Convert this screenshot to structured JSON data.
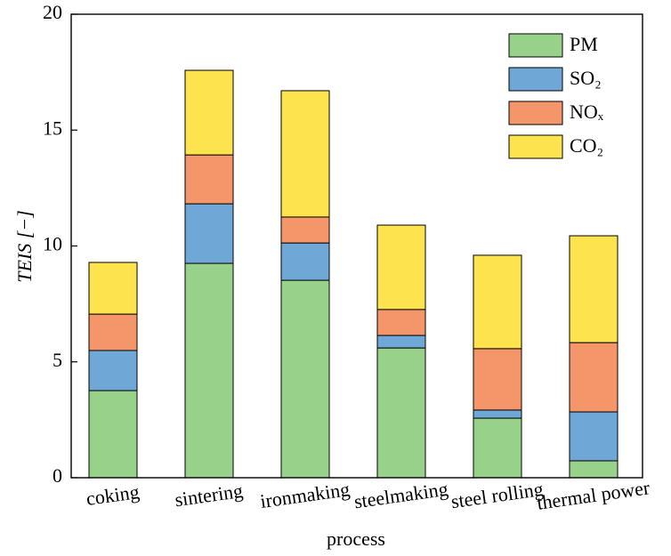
{
  "chart_data": {
    "type": "stacked_bar",
    "x_label": "process",
    "y_label": "TEIS [−]",
    "categories": [
      "coking",
      "sintering",
      "ironmaking",
      "steelmaking",
      "steel rolling",
      "thermal power"
    ],
    "series": [
      {
        "name": "PM",
        "color": "#98d18a",
        "values": [
          3.76,
          9.25,
          8.52,
          5.6,
          2.57,
          0.73
        ]
      },
      {
        "name": "SO₂",
        "color": "#6fa8d6",
        "values": [
          1.73,
          2.57,
          1.61,
          0.54,
          0.35,
          2.11
        ]
      },
      {
        "name": "NOₓ",
        "color": "#f4956a",
        "values": [
          1.57,
          2.11,
          1.12,
          1.12,
          2.65,
          2.99
        ]
      },
      {
        "name": "CO₂",
        "color": "#fde34e",
        "values": [
          2.23,
          3.65,
          5.45,
          3.64,
          4.03,
          4.61
        ]
      }
    ],
    "ylim": [
      0,
      20
    ],
    "yticks": [
      0,
      5,
      10,
      15,
      20
    ],
    "legend": "upper right"
  }
}
